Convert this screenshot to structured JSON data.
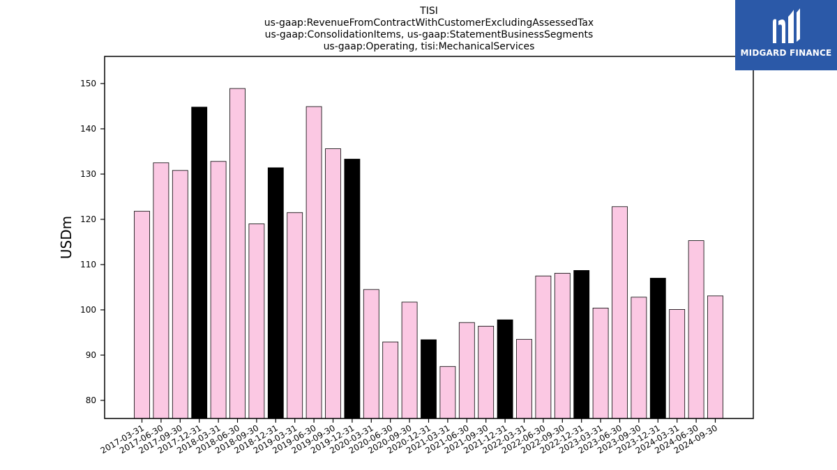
{
  "chart_data": {
    "type": "bar",
    "title_lines": [
      "TISI",
      "us-gaap:RevenueFromContractWithCustomerExcludingAssessedTax",
      "us-gaap:ConsolidationItems, us-gaap:StatementBusinessSegments",
      "us-gaap:Operating, tisi:MechanicalServices"
    ],
    "ylabel": "USDm",
    "xlabel": "",
    "ylim": [
      76,
      156
    ],
    "yticks": [
      80,
      90,
      100,
      110,
      120,
      130,
      140,
      150
    ],
    "categories": [
      "2017-03-31",
      "2017-06-30",
      "2017-09-30",
      "2017-12-31",
      "2018-03-31",
      "2018-06-30",
      "2018-09-30",
      "2018-12-31",
      "2019-03-31",
      "2019-06-30",
      "2019-09-30",
      "2019-12-31",
      "2020-03-31",
      "2020-06-30",
      "2020-09-30",
      "2020-12-31",
      "2021-03-31",
      "2021-06-30",
      "2021-09-30",
      "2021-12-31",
      "2022-03-31",
      "2022-06-30",
      "2022-09-30",
      "2022-12-31",
      "2023-03-31",
      "2023-06-30",
      "2023-09-30",
      "2023-12-31",
      "2024-03-31",
      "2024-06-30",
      "2024-09-30"
    ],
    "values": [
      121.8,
      132.5,
      130.8,
      144.8,
      132.8,
      148.9,
      119.0,
      131.4,
      121.5,
      144.9,
      135.6,
      133.3,
      104.5,
      92.9,
      101.7,
      93.4,
      87.5,
      97.2,
      96.4,
      97.8,
      93.5,
      107.5,
      108.1,
      108.7,
      100.4,
      122.8,
      102.8,
      107.0,
      100.1,
      115.3,
      103.1
    ],
    "grid": false,
    "colors": {
      "bar": "#fbc8e3",
      "highlight": "#000000",
      "edge": "#000000"
    },
    "highlight_rule": "quarter ending 12-31"
  },
  "logo": {
    "text": "MIDGARD FINANCE",
    "background": "#2b59a8",
    "icon": "midgard-logo-icon"
  }
}
